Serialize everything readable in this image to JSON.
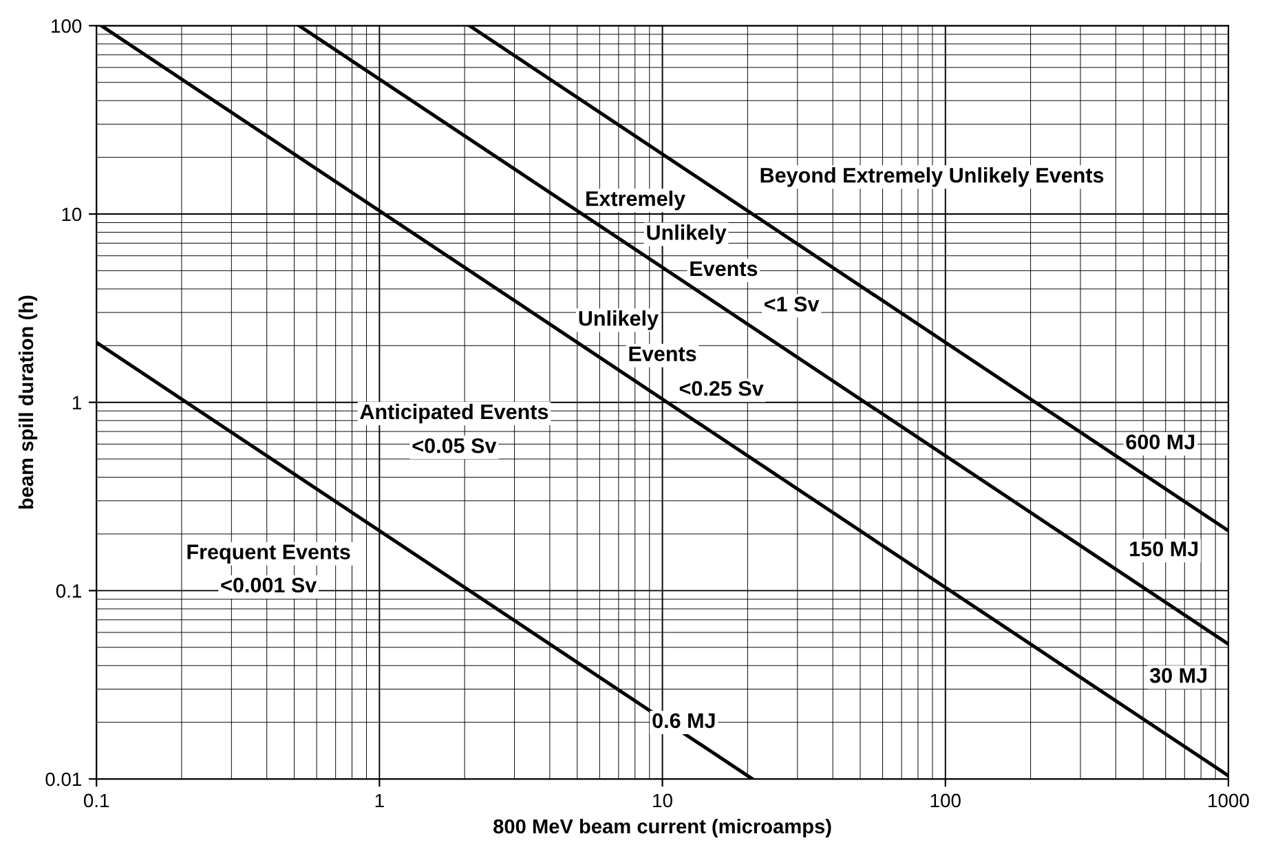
{
  "chart_data": {
    "type": "line",
    "xlabel": "800 MeV beam current (microamps)",
    "ylabel": "beam spill duration (h)",
    "log": "xy",
    "grid": true,
    "marker": "none",
    "line_style": "solid",
    "xlim": [
      0.1,
      1000
    ],
    "ylim": [
      0.01,
      100
    ],
    "xticks": [
      0.1,
      1,
      10,
      100,
      1000
    ],
    "yticks": [
      0.01,
      0.1,
      1,
      10,
      100
    ],
    "series": [
      {
        "color": "#000000",
        "x": [
          0.1,
          20.8
        ],
        "values": [
          2.08,
          0.01
        ]
      },
      {
        "color": "#000000",
        "x": [
          0.104,
          1000
        ],
        "values": [
          100,
          0.0104
        ]
      },
      {
        "color": "#000000",
        "x": [
          0.52,
          1000
        ],
        "values": [
          100,
          0.052
        ]
      },
      {
        "color": "#000000",
        "x": [
          2.08,
          1000
        ],
        "values": [
          100,
          0.208
        ]
      }
    ],
    "annotations": [
      "Beyond Extremely Unlikely Events",
      "Extremely",
      "Unlikely",
      "Events",
      "<1 Sv",
      "Unlikely",
      "Events",
      "<0.25 Sv",
      "Anticipated Events",
      "<0.05 Sv",
      "Frequent Events",
      "<0.001 Sv",
      "0.6 MJ",
      "30 MJ",
      "150 MJ",
      "600 MJ"
    ]
  }
}
